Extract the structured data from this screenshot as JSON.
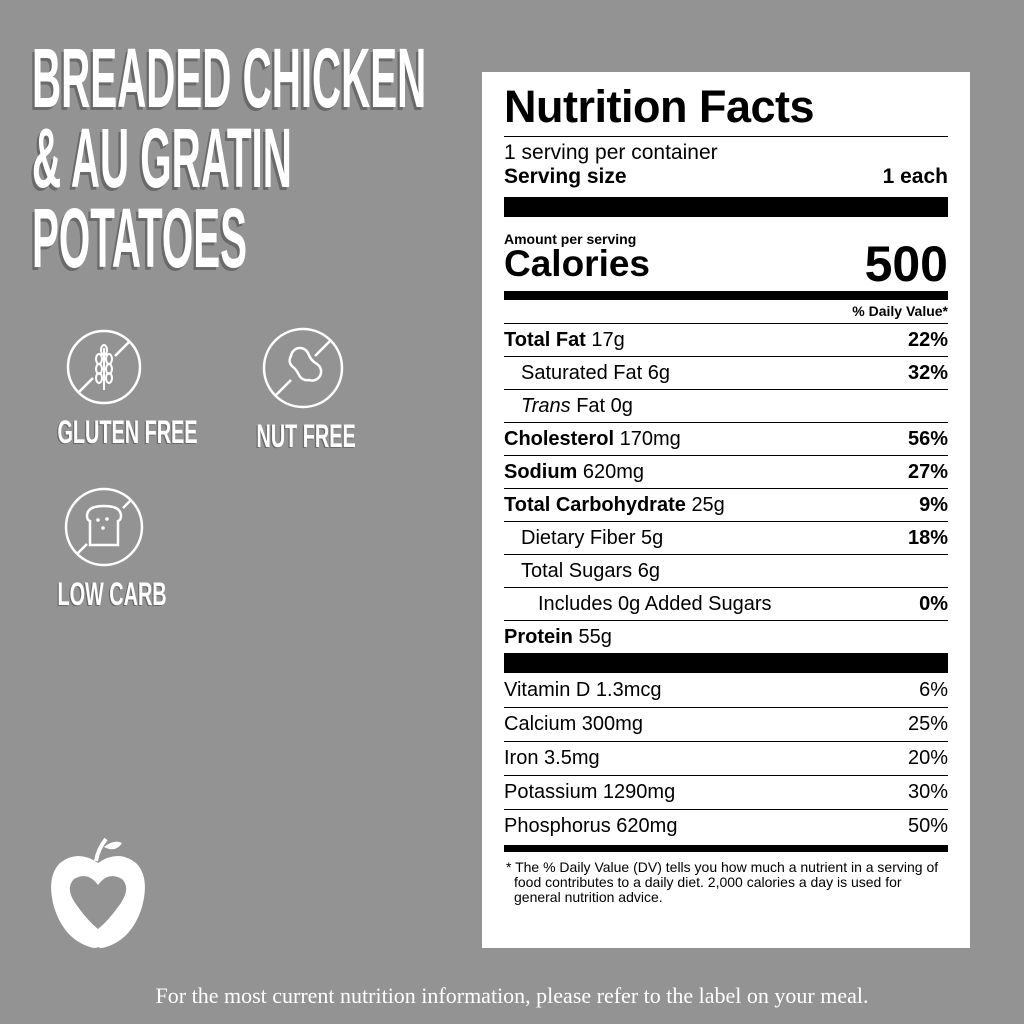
{
  "title_lines": [
    "BREADED CHICKEN",
    "& AU GRATIN",
    "POTATOES"
  ],
  "badges": [
    {
      "label": "GLUTEN FREE",
      "icon": "no-wheat-icon"
    },
    {
      "label": "NUT FREE",
      "icon": "no-peanut-icon"
    },
    {
      "label": "LOW CARB",
      "icon": "no-bread-icon"
    }
  ],
  "logo": "apple-heart-logo",
  "label": {
    "heading": "Nutrition Facts",
    "servings": "1 serving per container",
    "serving_size_label": "Serving size",
    "serving_size_value": "1 each",
    "amount_per_serving": "Amount per serving",
    "calories_label": "Calories",
    "calories_value": "500",
    "dv_header": "% Daily Value*",
    "nutrients": [
      {
        "name": "Total Fat",
        "amount": "17g",
        "dv": "22%",
        "bold": true,
        "indent": 0
      },
      {
        "name": "Saturated Fat",
        "amount": "6g",
        "dv": "32%",
        "bold": false,
        "indent": 1
      },
      {
        "name": "Trans",
        "amount": "Fat 0g",
        "dv": "",
        "bold": false,
        "indent": 1,
        "italic": true
      },
      {
        "name": "Cholesterol",
        "amount": "170mg",
        "dv": "56%",
        "bold": true,
        "indent": 0
      },
      {
        "name": "Sodium",
        "amount": "620mg",
        "dv": "27%",
        "bold": true,
        "indent": 0
      },
      {
        "name": "Total Carbohydrate",
        "amount": "25g",
        "dv": "9%",
        "bold": true,
        "indent": 0
      },
      {
        "name": "Dietary Fiber",
        "amount": "5g",
        "dv": "18%",
        "bold": false,
        "indent": 1
      },
      {
        "name": "Total Sugars",
        "amount": "6g",
        "dv": "",
        "bold": false,
        "indent": 1
      },
      {
        "name": "Includes 0g Added Sugars",
        "amount": "",
        "dv": "0%",
        "bold": false,
        "indent": 2
      },
      {
        "name": "Protein",
        "amount": "55g",
        "dv": "",
        "bold": true,
        "indent": 0
      }
    ],
    "vitamins": [
      {
        "name": "Vitamin D 1.3mcg",
        "dv": "6%"
      },
      {
        "name": "Calcium 300mg",
        "dv": "25%"
      },
      {
        "name": "Iron 3.5mg",
        "dv": "20%"
      },
      {
        "name": "Potassium 1290mg",
        "dv": "30%"
      },
      {
        "name": "Phosphorus 620mg",
        "dv": "50%"
      }
    ],
    "footnote": "* The % Daily Value (DV) tells you how much a nutrient in a serving of food contributes to a daily diet. 2,000 calories a day is used for general nutrition advice."
  },
  "disclaimer": "For the most current nutrition information, please refer to the label on your meal."
}
